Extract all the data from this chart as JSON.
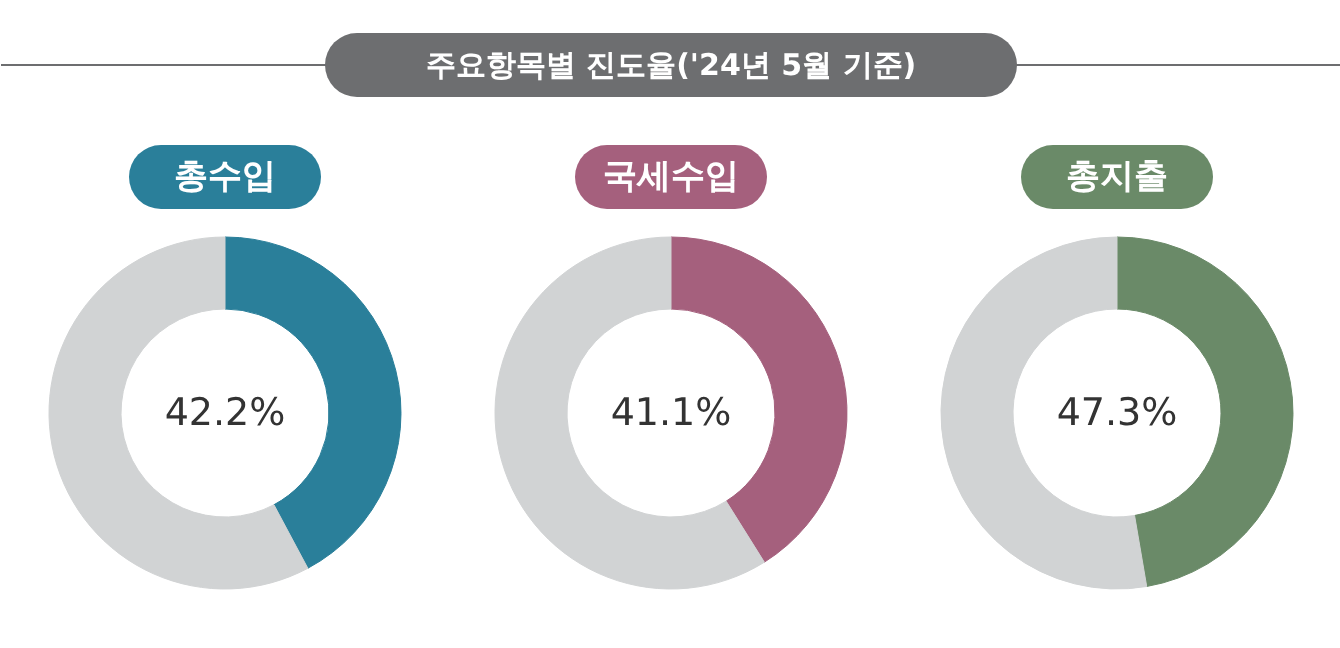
{
  "chart_data": [
    {
      "type": "other",
      "title": "주요항목별 진도율('24년 5월 기준)",
      "color": "#6d6e70"
    },
    {
      "type": "donut",
      "title": "총수입",
      "categories": [
        null,
        null
      ],
      "values": [
        42.2,
        57.8
      ],
      "colors": [
        "#2a7f9a",
        "#d1d3d4"
      ],
      "annotations": [
        "42.2%"
      ]
    },
    {
      "type": "donut",
      "title": "국세수입",
      "categories": [
        null,
        null
      ],
      "values": [
        41.1,
        58.9
      ],
      "colors": [
        "#a5607d",
        "#d1d3d4"
      ],
      "annotations": [
        "41.1%"
      ]
    },
    {
      "type": "donut",
      "title": "총지출",
      "categories": [
        null,
        null
      ],
      "values": [
        47.3,
        52.7
      ],
      "colors": [
        "#6a8a68",
        "#d1d3d4"
      ],
      "annotations": [
        "47.3%"
      ]
    }
  ]
}
